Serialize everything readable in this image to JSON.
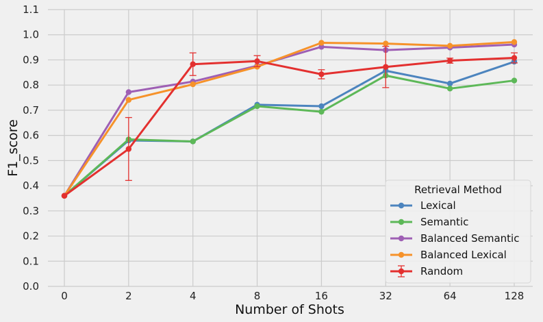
{
  "chart_data": {
    "type": "line",
    "title": "",
    "xlabel": "Number of Shots",
    "ylabel": "F1_score",
    "categories": [
      "0",
      "2",
      "4",
      "8",
      "16",
      "32",
      "64",
      "128"
    ],
    "ylim": [
      0.0,
      1.1
    ],
    "yticks": [
      0.0,
      0.1,
      0.2,
      0.3,
      0.4,
      0.5,
      0.6,
      0.7,
      0.8,
      0.9,
      1.0,
      1.1
    ],
    "ytick_labels": [
      "0.0",
      "0.1",
      "0.2",
      "0.3",
      "0.4",
      "0.5",
      "0.6",
      "0.7",
      "0.8",
      "0.9",
      "1.0",
      "1.1"
    ],
    "grid": true,
    "legend": {
      "title": "Retrieval Method",
      "placement": "bottom-right"
    },
    "series": [
      {
        "name": "Lexical",
        "color": "#4c84be",
        "values": [
          0.36,
          0.58,
          0.576,
          0.722,
          0.716,
          0.857,
          0.806,
          0.893
        ]
      },
      {
        "name": "Semantic",
        "color": "#5db858",
        "values": [
          0.36,
          0.584,
          0.576,
          0.716,
          0.694,
          0.838,
          0.786,
          0.818
        ]
      },
      {
        "name": "Balanced Semantic",
        "color": "#9e5fb4",
        "values": [
          0.36,
          0.772,
          0.814,
          0.877,
          0.952,
          0.939,
          0.949,
          0.961
        ]
      },
      {
        "name": "Balanced Lexical",
        "color": "#f6922a",
        "values": [
          0.36,
          0.741,
          0.803,
          0.873,
          0.968,
          0.965,
          0.956,
          0.971
        ]
      },
      {
        "name": "Random",
        "color": "#e3302f",
        "values": [
          0.36,
          0.546,
          0.883,
          0.895,
          0.843,
          0.872,
          0.897,
          0.908
        ],
        "errors": [
          0.0,
          0.125,
          0.045,
          0.022,
          0.018,
          0.082,
          0.01,
          0.02
        ]
      }
    ]
  }
}
